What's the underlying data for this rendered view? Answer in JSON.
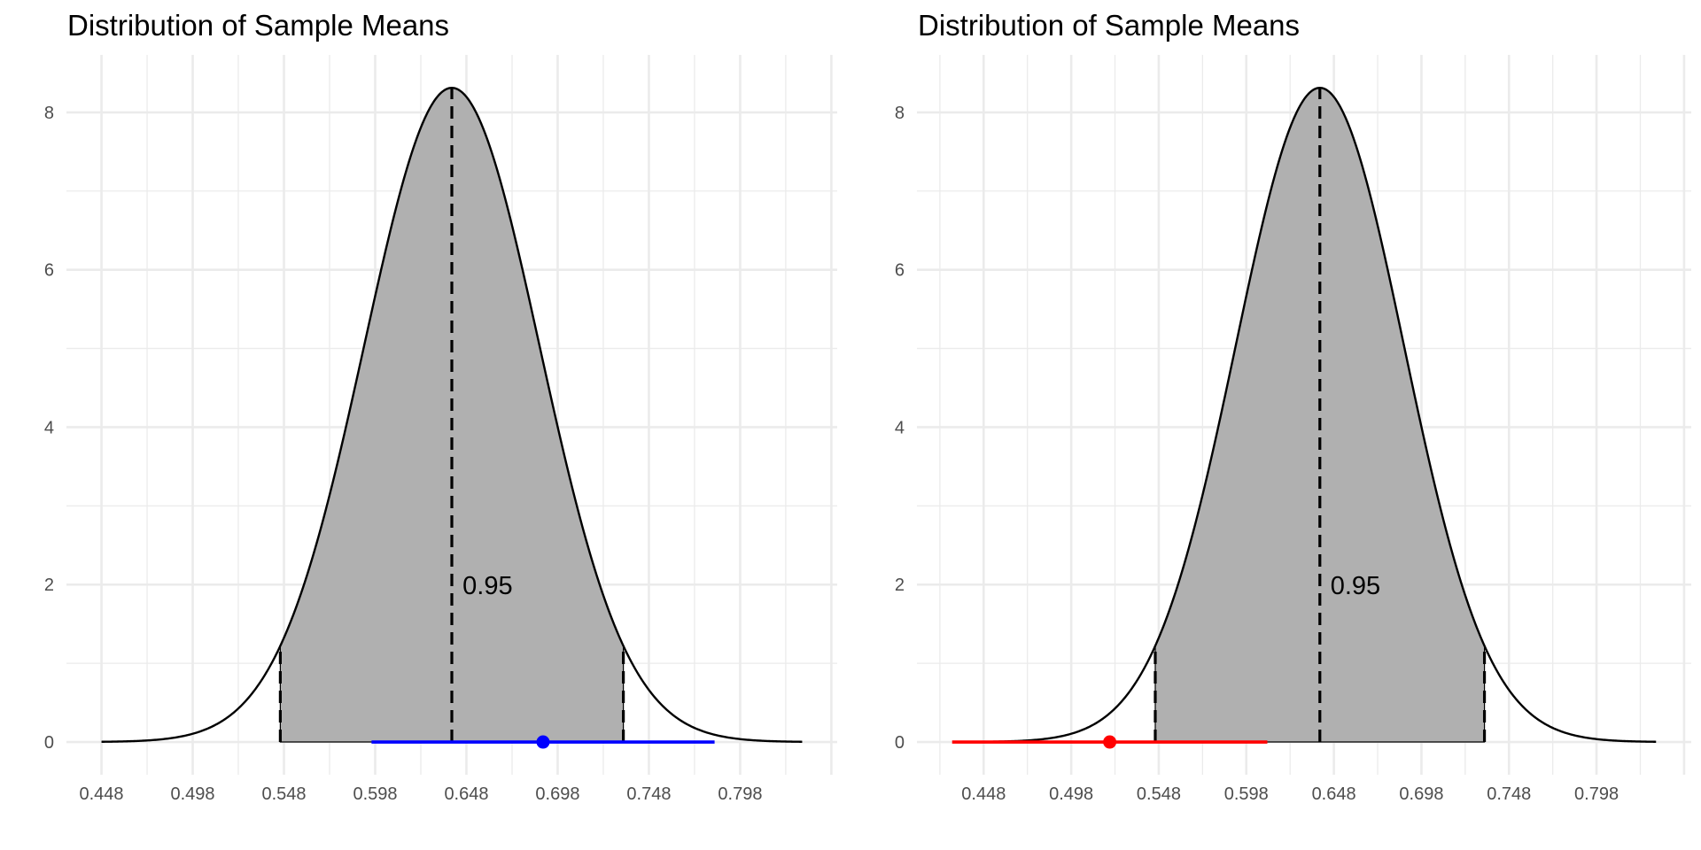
{
  "chart_data": [
    {
      "type": "area",
      "title": "Distribution of Sample Means",
      "xlabel": "",
      "ylabel": "",
      "grid": true,
      "distribution": {
        "kind": "normal",
        "mean": 0.64,
        "sd": 0.048,
        "x_from": 0.448,
        "x_to": 0.832
      },
      "shaded_region": {
        "from": 0.546,
        "to": 0.734,
        "color": "#b0b0b0"
      },
      "reference_lines": [
        {
          "name": "lower-critical",
          "x": 0.546,
          "style": "dashed"
        },
        {
          "name": "mean",
          "x": 0.64,
          "style": "dashed"
        },
        {
          "name": "upper-critical",
          "x": 0.734,
          "style": "dashed"
        }
      ],
      "annotation": {
        "text": "0.95",
        "x": 0.643,
        "y": 2
      },
      "interval": {
        "estimate": 0.69,
        "lower": 0.596,
        "upper": 0.784,
        "color": "#0000ff"
      },
      "xlim": [
        0.4288,
        0.8512
      ],
      "ylim": [
        -0.416,
        8.73
      ],
      "x_ticks": [
        0.448,
        0.498,
        0.548,
        0.598,
        0.648,
        0.698,
        0.748,
        0.798
      ],
      "x_tick_labels": [
        "0.448",
        "0.498",
        "0.548",
        "0.598",
        "0.648",
        "0.698",
        "0.748",
        "0.798"
      ],
      "y_ticks": [
        0,
        2,
        4,
        6,
        8
      ],
      "y_tick_labels": [
        "0",
        "2",
        "4",
        "6",
        "8"
      ]
    },
    {
      "type": "area",
      "title": "Distribution of Sample Means",
      "xlabel": "",
      "ylabel": "",
      "grid": true,
      "distribution": {
        "kind": "normal",
        "mean": 0.64,
        "sd": 0.048,
        "x_from": 0.448,
        "x_to": 0.832
      },
      "shaded_region": {
        "from": 0.546,
        "to": 0.734,
        "color": "#b0b0b0"
      },
      "reference_lines": [
        {
          "name": "lower-critical",
          "x": 0.546,
          "style": "dashed"
        },
        {
          "name": "mean",
          "x": 0.64,
          "style": "dashed"
        },
        {
          "name": "upper-critical",
          "x": 0.734,
          "style": "dashed"
        }
      ],
      "annotation": {
        "text": "0.95",
        "x": 0.643,
        "y": 2
      },
      "interval": {
        "estimate": 0.52,
        "lower": 0.43,
        "upper": 0.61,
        "color": "#ff0000"
      },
      "xlim": [
        0.4099,
        0.8521
      ],
      "ylim": [
        -0.416,
        8.73
      ],
      "x_ticks": [
        0.448,
        0.498,
        0.548,
        0.598,
        0.648,
        0.698,
        0.748,
        0.798
      ],
      "x_tick_labels": [
        "0.448",
        "0.498",
        "0.548",
        "0.598",
        "0.648",
        "0.698",
        "0.748",
        "0.798"
      ],
      "y_ticks": [
        0,
        2,
        4,
        6,
        8
      ],
      "y_tick_labels": [
        "0",
        "2",
        "4",
        "6",
        "8"
      ]
    }
  ]
}
